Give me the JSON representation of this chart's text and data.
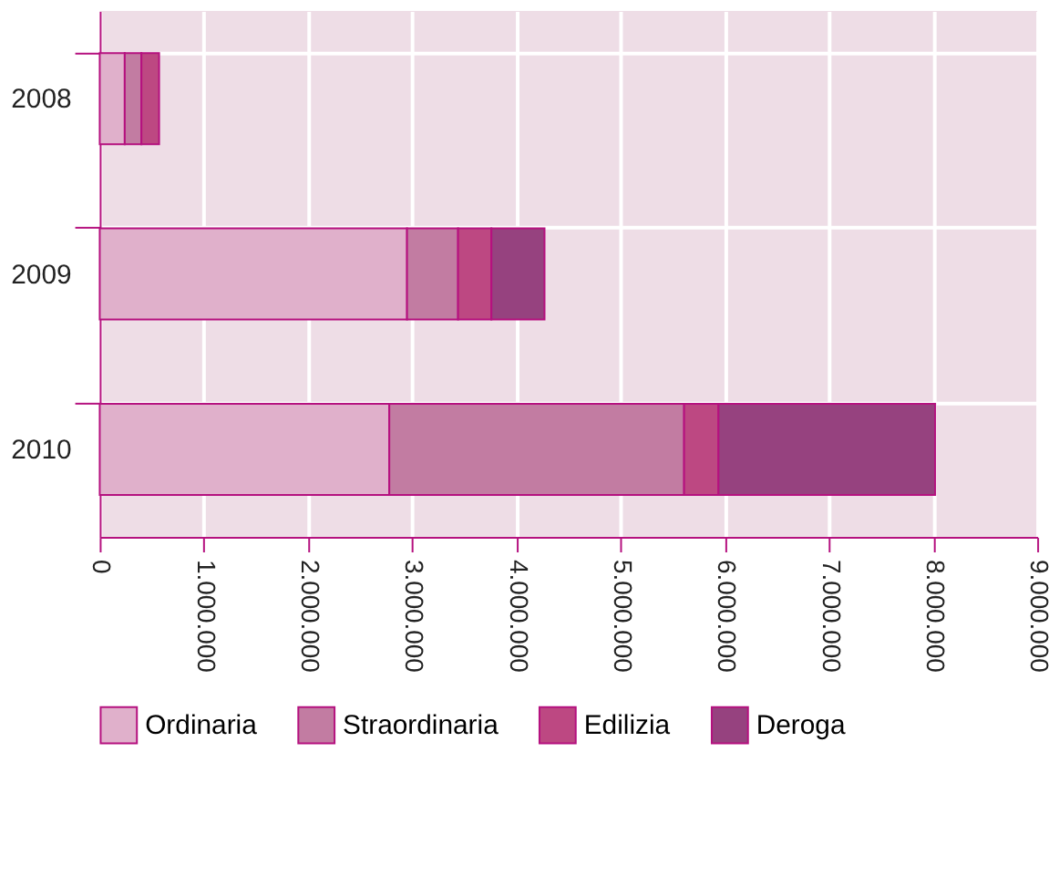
{
  "chart_data": {
    "type": "bar",
    "orientation": "horizontal",
    "stacked": true,
    "categories": [
      "2008",
      "2009",
      "2010"
    ],
    "series": [
      {
        "name": "Ordinaria",
        "color": "#e0b0cb",
        "values": [
          240000,
          2950000,
          2780000
        ]
      },
      {
        "name": "Straordinaria",
        "color": "#c27ca2",
        "values": [
          160000,
          490000,
          2830000
        ]
      },
      {
        "name": "Edilizia",
        "color": "#bd4882",
        "values": [
          170000,
          320000,
          330000
        ]
      },
      {
        "name": "Deroga",
        "color": "#96427f",
        "values": [
          null,
          510000,
          2080000
        ]
      }
    ],
    "xlim": [
      0,
      9000000
    ],
    "xticks": [
      0,
      {
        "value": 1000000,
        "label": "1.000.000"
      },
      {
        "value": 2000000,
        "label": "2.000.000"
      },
      {
        "value": 3000000,
        "label": "3.000.000"
      },
      {
        "value": 4000000,
        "label": "4.000.000"
      },
      {
        "value": 5000000,
        "label": "5.000.000"
      },
      {
        "value": 6000000,
        "label": "6.000.000"
      },
      {
        "value": 7000000,
        "label": "7.000.000"
      },
      {
        "value": 8000000,
        "label": "8.000.000"
      },
      {
        "value": 9000000,
        "label": "9.000.000"
      }
    ],
    "grid": true,
    "legend": "bottom"
  }
}
